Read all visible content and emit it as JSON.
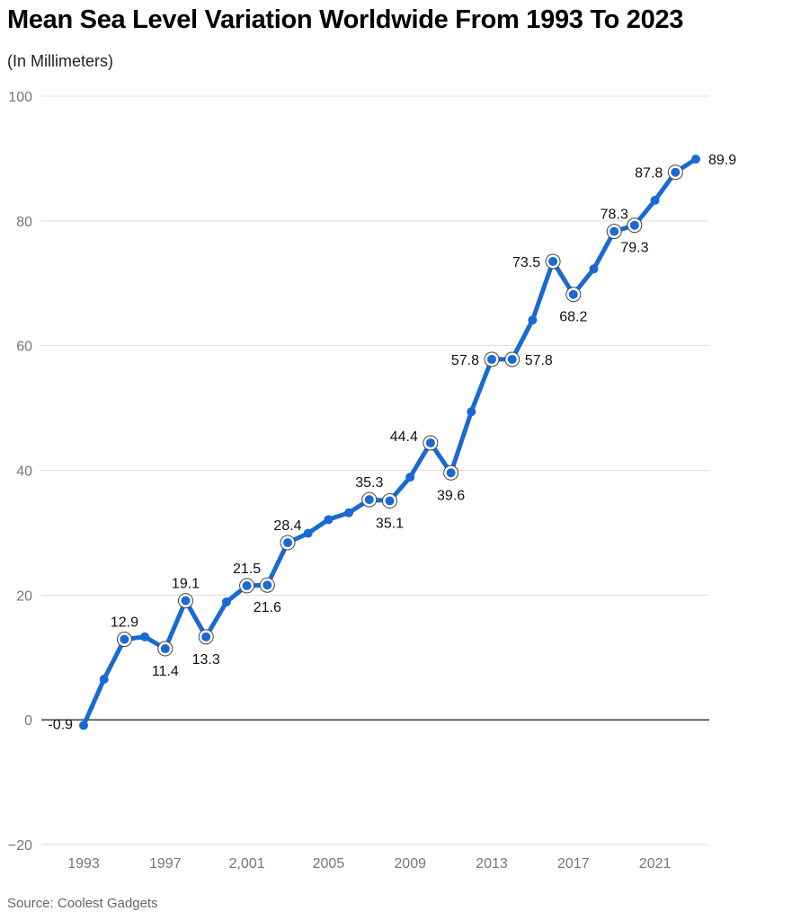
{
  "chart_data": {
    "type": "line",
    "title": "Mean Sea Level Variation Worldwide From 1993 To 2023",
    "subtitle": "(In Millimeters)",
    "source": "Source: Coolest Gadgets",
    "ylim": [
      -20,
      100
    ],
    "yticks": [
      100,
      80,
      60,
      40,
      20,
      0,
      -20
    ],
    "ytick_labels": [
      "100",
      "80",
      "60",
      "40",
      "20",
      "0",
      "−20"
    ],
    "xlim": [
      1993,
      2023
    ],
    "xticks": [
      1993,
      1997,
      2001,
      2005,
      2009,
      2013,
      2017,
      2021
    ],
    "xtick_labels": [
      "1993",
      "1997",
      "2,001",
      "2005",
      "2009",
      "2013",
      "2017",
      "2021"
    ],
    "grid": true,
    "color": "#1a6ad4",
    "series": [
      {
        "x": [
          1993,
          1994,
          1995,
          1996,
          1997,
          1998,
          1999,
          2000,
          2001,
          2002,
          2003,
          2004,
          2005,
          2006,
          2007,
          2008,
          2009,
          2010,
          2011,
          2012,
          2013,
          2014,
          2015,
          2016,
          2017,
          2018,
          2019,
          2020,
          2021,
          2022,
          2023
        ],
        "values": [
          -0.9,
          6.5,
          12.9,
          13.3,
          11.4,
          19.1,
          13.3,
          18.9,
          21.5,
          21.6,
          28.4,
          29.9,
          32.1,
          33.2,
          35.3,
          35.1,
          38.9,
          44.4,
          39.6,
          49.4,
          57.8,
          57.8,
          64.1,
          73.5,
          68.2,
          72.3,
          78.3,
          79.3,
          83.3,
          87.8,
          89.9
        ]
      }
    ],
    "annotations": [
      {
        "x": 1993,
        "text": "-0.9",
        "pos": "left"
      },
      {
        "x": 1995,
        "text": "12.9",
        "pos": "above"
      },
      {
        "x": 1997,
        "text": "11.4",
        "pos": "below"
      },
      {
        "x": 1998,
        "text": "19.1",
        "pos": "above"
      },
      {
        "x": 1999,
        "text": "13.3",
        "pos": "below"
      },
      {
        "x": 2001,
        "text": "21.5",
        "pos": "above"
      },
      {
        "x": 2002,
        "text": "21.6",
        "pos": "below"
      },
      {
        "x": 2003,
        "text": "28.4",
        "pos": "above"
      },
      {
        "x": 2007,
        "text": "35.3",
        "pos": "above"
      },
      {
        "x": 2008,
        "text": "35.1",
        "pos": "below"
      },
      {
        "x": 2010,
        "text": "44.4",
        "pos": "above-left"
      },
      {
        "x": 2011,
        "text": "39.6",
        "pos": "below"
      },
      {
        "x": 2013,
        "text": "57.8",
        "pos": "left"
      },
      {
        "x": 2014,
        "text": "57.8",
        "pos": "right"
      },
      {
        "x": 2016,
        "text": "73.5",
        "pos": "left"
      },
      {
        "x": 2017,
        "text": "68.2",
        "pos": "below"
      },
      {
        "x": 2019,
        "text": "78.3",
        "pos": "above"
      },
      {
        "x": 2020,
        "text": "79.3",
        "pos": "below"
      },
      {
        "x": 2022,
        "text": "87.8",
        "pos": "left"
      },
      {
        "x": 2023,
        "text": "89.9",
        "pos": "right"
      }
    ]
  }
}
